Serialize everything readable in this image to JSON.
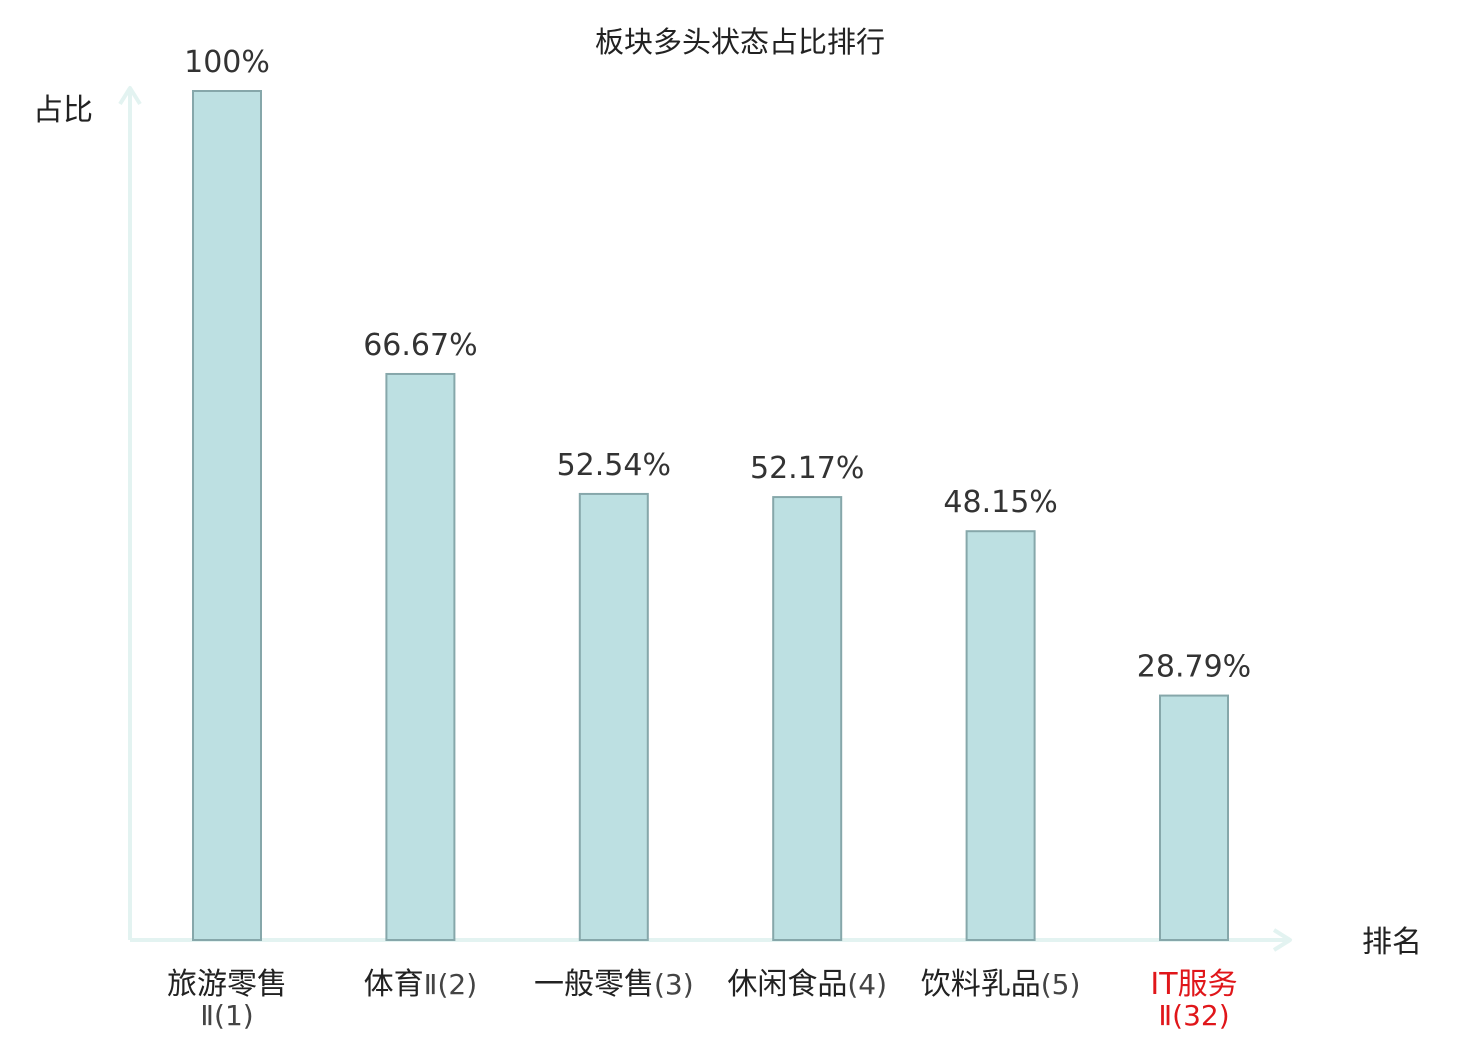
{
  "chart_data": {
    "type": "bar",
    "title": "板块多头状态占比排行",
    "xlabel": "排名",
    "ylabel": "占比",
    "ylim": [
      0,
      100
    ],
    "grid": false,
    "categories": [
      {
        "name": "旅游零售",
        "rank": "Ⅱ(1)",
        "name_wrapped": true,
        "highlight": false
      },
      {
        "name": "体育",
        "rank": "Ⅱ(2)",
        "name_wrapped": false,
        "highlight": false
      },
      {
        "name": "一般零售",
        "rank": "(3)",
        "name_wrapped": false,
        "highlight": false
      },
      {
        "name": "休闲食品",
        "rank": "(4)",
        "name_wrapped": false,
        "highlight": false
      },
      {
        "name": "饮料乳品",
        "rank": "(5)",
        "name_wrapped": false,
        "highlight": false
      },
      {
        "name": "IT服务",
        "rank": "Ⅱ(32)",
        "name_wrapped": true,
        "highlight": true
      }
    ],
    "values": [
      100,
      66.67,
      52.54,
      52.17,
      48.15,
      28.79
    ],
    "value_labels": [
      "100%",
      "66.67%",
      "52.54%",
      "52.17%",
      "48.15%",
      "28.79%"
    ]
  },
  "colors": {
    "bar_fill": "#bde0e2",
    "bar_stroke": "#86a7aa",
    "axis": "#e3f3f1",
    "text": "#222222",
    "value_text": "#333333",
    "highlight": "#e0161a",
    "rank_text": "#444444"
  }
}
